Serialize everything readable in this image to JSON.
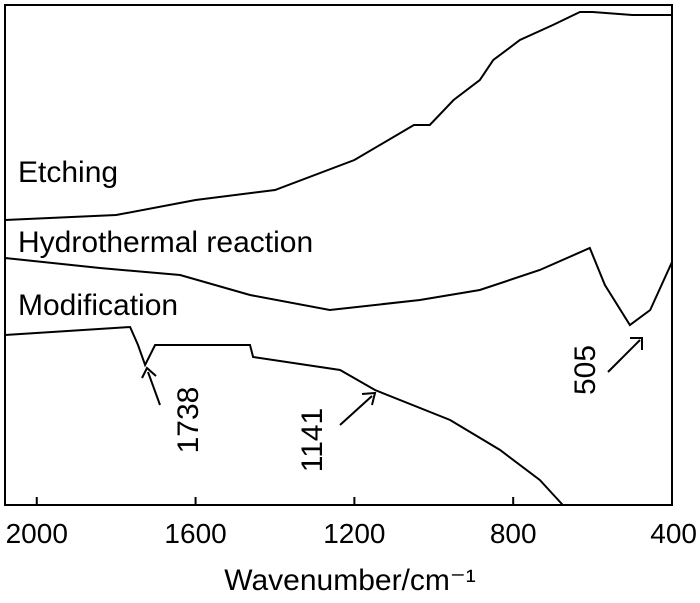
{
  "chart_data": {
    "type": "line",
    "x_label": "Wavenumber/cm⁻¹",
    "xlim": [
      2080,
      400
    ],
    "xticks": [
      2000,
      1600,
      1200,
      800,
      400
    ],
    "ylim": [
      0,
      100
    ],
    "series": [
      {
        "name": "Etching",
        "color": "#000000",
        "x": [
          2080,
          1800,
          1600,
          1400,
          1200,
          1050,
          1010,
          950,
          884,
          850,
          783,
          700,
          632,
          600,
          500,
          400
        ],
        "values": [
          57,
          58,
          61,
          63,
          69,
          76,
          76,
          81,
          85,
          89,
          93,
          96,
          98.6,
          98.6,
          98,
          98
        ]
      },
      {
        "name": "Hydrothermal reaction",
        "color": "#000000",
        "x": [
          2080,
          1841,
          1639,
          1463,
          1262,
          1035,
          884,
          733,
          607,
          569,
          506,
          455,
          400
        ],
        "values": [
          49.4,
          47.4,
          46,
          42,
          39,
          41,
          43,
          47,
          51.4,
          44,
          36,
          39,
          48.6
        ]
      },
      {
        "name": "Modification",
        "color": "#000000",
        "x": [
          2080,
          1765,
          1745,
          1727,
          1702,
          1463,
          1455,
          1236,
          1148,
          959,
          833,
          733,
          675
        ],
        "values": [
          34,
          35.6,
          32,
          28,
          32,
          32,
          29.6,
          27,
          23,
          17,
          11,
          5,
          0
        ]
      }
    ],
    "annotations": [
      "1738",
      "1141",
      "505"
    ]
  }
}
